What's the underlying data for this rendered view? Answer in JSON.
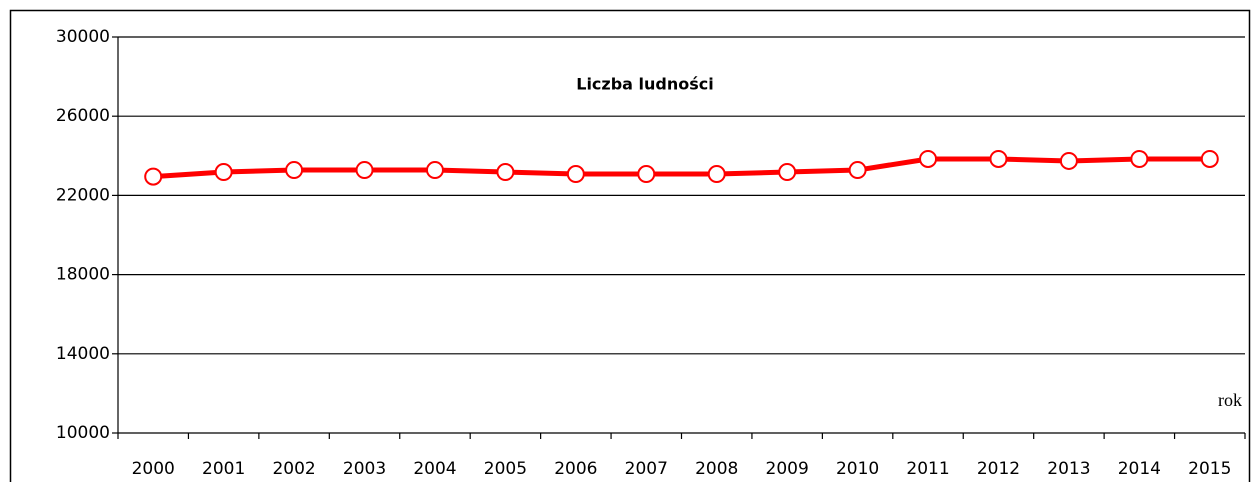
{
  "chart_data": {
    "type": "line",
    "title": "Liczba ludności",
    "x_label": "rok",
    "categories": [
      "2000",
      "2001",
      "2002",
      "2003",
      "2004",
      "2005",
      "2006",
      "2007",
      "2008",
      "2009",
      "2010",
      "2011",
      "2012",
      "2013",
      "2014",
      "2015"
    ],
    "series": [
      {
        "name": "Liczba ludności",
        "color": "#ff0000",
        "values": [
          22950,
          23180,
          23280,
          23280,
          23280,
          23180,
          23080,
          23080,
          23080,
          23180,
          23280,
          23840,
          23840,
          23740,
          23840,
          23840
        ]
      }
    ],
    "ylim": [
      10000,
      30000
    ],
    "yticks": [
      10000,
      14000,
      18000,
      22000,
      26000,
      30000
    ],
    "grid": true
  }
}
